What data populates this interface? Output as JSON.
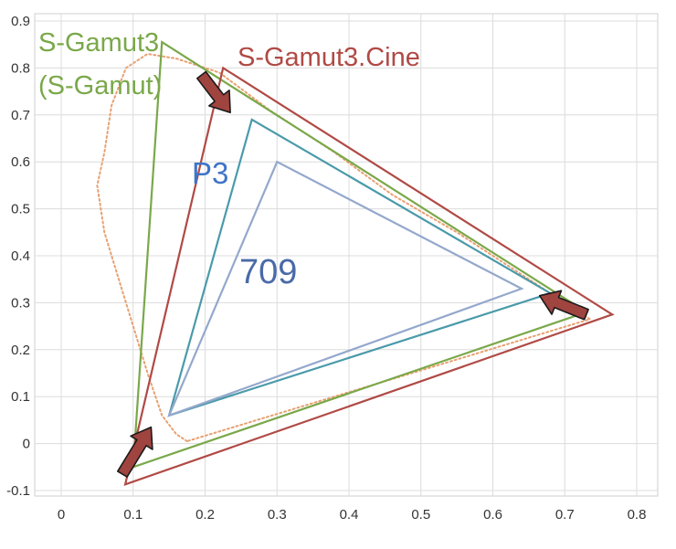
{
  "chart_data": {
    "type": "scatter",
    "title": "",
    "xlabel": "",
    "ylabel": "",
    "xlim": [
      0,
      0.8
    ],
    "ylim": [
      -0.1,
      0.9
    ],
    "x_ticks": [
      "0",
      "0.1",
      "0.2",
      "0.3",
      "0.4",
      "0.5",
      "0.6",
      "0.7",
      "0.8"
    ],
    "y_ticks": [
      "-0.1",
      "0",
      "0.1",
      "0.2",
      "0.3",
      "0.4",
      "0.5",
      "0.6",
      "0.7",
      "0.8",
      "0.9"
    ],
    "grid": true,
    "series": [
      {
        "name": "S-Gamut3\n(S-Gamut)",
        "color": "#7aa84a",
        "points": [
          [
            0.73,
            0.28
          ],
          [
            0.14,
            0.855
          ],
          [
            0.1,
            -0.05
          ]
        ]
      },
      {
        "name": "S-Gamut3.Cine",
        "color": "#b04a45",
        "points": [
          [
            0.766,
            0.275
          ],
          [
            0.225,
            0.8
          ],
          [
            0.089,
            -0.087
          ]
        ]
      },
      {
        "name": "P3",
        "color": "#4a9aaa",
        "points": [
          [
            0.68,
            0.32
          ],
          [
            0.265,
            0.69
          ],
          [
            0.15,
            0.06
          ]
        ]
      },
      {
        "name": "709",
        "color": "#94a8cc",
        "points": [
          [
            0.64,
            0.33
          ],
          [
            0.3,
            0.6
          ],
          [
            0.15,
            0.06
          ]
        ]
      }
    ],
    "spectral_locus": {
      "color": "#e8a070",
      "points": [
        [
          0.175,
          0.005
        ],
        [
          0.16,
          0.02
        ],
        [
          0.14,
          0.06
        ],
        [
          0.12,
          0.15
        ],
        [
          0.1,
          0.25
        ],
        [
          0.08,
          0.35
        ],
        [
          0.06,
          0.45
        ],
        [
          0.05,
          0.55
        ],
        [
          0.06,
          0.62
        ],
        [
          0.07,
          0.72
        ],
        [
          0.09,
          0.8
        ],
        [
          0.12,
          0.83
        ],
        [
          0.16,
          0.82
        ],
        [
          0.22,
          0.79
        ],
        [
          0.29,
          0.71
        ],
        [
          0.38,
          0.62
        ],
        [
          0.46,
          0.53
        ],
        [
          0.55,
          0.45
        ],
        [
          0.63,
          0.37
        ],
        [
          0.69,
          0.31
        ],
        [
          0.735,
          0.265
        ],
        [
          0.175,
          0.005
        ]
      ]
    },
    "arrows": [
      {
        "from": [
          0.195,
          0.785
        ],
        "to": [
          0.235,
          0.705
        ]
      },
      {
        "from": [
          0.73,
          0.275
        ],
        "to": [
          0.665,
          0.315
        ]
      },
      {
        "from": [
          0.085,
          -0.065
        ],
        "to": [
          0.125,
          0.035
        ]
      }
    ],
    "arrow_color": "#a0443f"
  }
}
